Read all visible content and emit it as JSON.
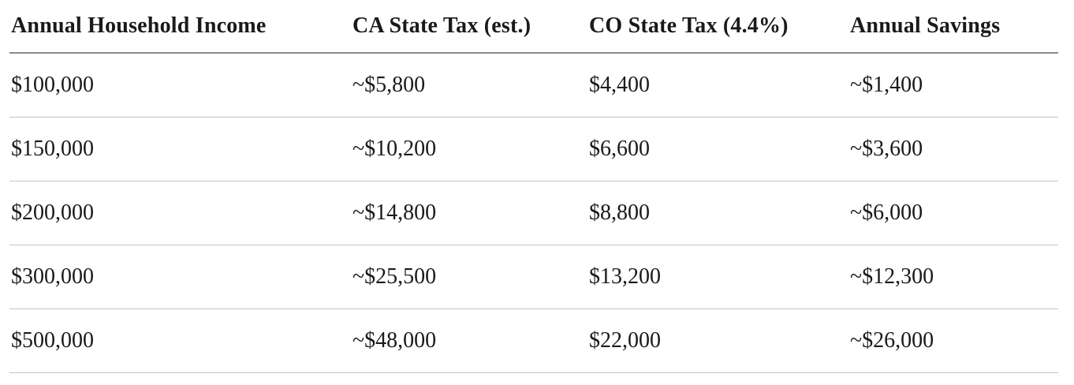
{
  "table": {
    "columns": [
      "Annual Household Income",
      "CA State Tax (est.)",
      "CO State Tax (4.4%)",
      "Annual Savings"
    ],
    "rows": [
      [
        "$100,000",
        "~$5,800",
        "$4,400",
        "~$1,400"
      ],
      [
        "$150,000",
        "~$10,200",
        "$6,600",
        "~$3,600"
      ],
      [
        "$200,000",
        "~$14,800",
        "$8,800",
        "~$6,000"
      ],
      [
        "$300,000",
        "~$25,500",
        "$13,200",
        "~$12,300"
      ],
      [
        "$500,000",
        "~$48,000",
        "$22,000",
        "~$26,000"
      ]
    ]
  },
  "colors": {
    "background": "#ffffff",
    "text": "#1a1a19",
    "header_rule": "#8a8a8a",
    "row_rule": "#c5c5c5"
  }
}
